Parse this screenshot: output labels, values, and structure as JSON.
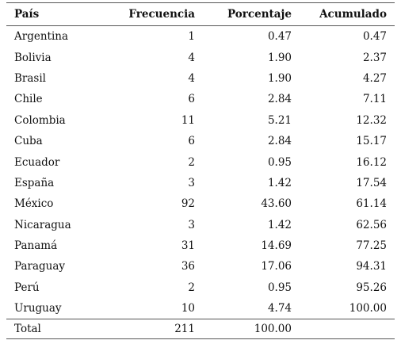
{
  "table": {
    "headers": {
      "country": "País",
      "frequency": "Frecuencia",
      "percentage": "Porcentaje",
      "cumulative": "Acumulado"
    },
    "rows": [
      {
        "country": "Argentina",
        "frequency": "1",
        "percentage": "0.47",
        "cumulative": "0.47"
      },
      {
        "country": "Bolivia",
        "frequency": "4",
        "percentage": "1.90",
        "cumulative": "2.37"
      },
      {
        "country": "Brasil",
        "frequency": "4",
        "percentage": "1.90",
        "cumulative": "4.27"
      },
      {
        "country": "Chile",
        "frequency": "6",
        "percentage": "2.84",
        "cumulative": "7.11"
      },
      {
        "country": "Colombia",
        "frequency": "11",
        "percentage": "5.21",
        "cumulative": "12.32"
      },
      {
        "country": "Cuba",
        "frequency": "6",
        "percentage": "2.84",
        "cumulative": "15.17"
      },
      {
        "country": "Ecuador",
        "frequency": "2",
        "percentage": "0.95",
        "cumulative": "16.12"
      },
      {
        "country": "España",
        "frequency": "3",
        "percentage": "1.42",
        "cumulative": "17.54"
      },
      {
        "country": "México",
        "frequency": "92",
        "percentage": "43.60",
        "cumulative": "61.14"
      },
      {
        "country": "Nicaragua",
        "frequency": "3",
        "percentage": "1.42",
        "cumulative": "62.56"
      },
      {
        "country": "Panamá",
        "frequency": "31",
        "percentage": "14.69",
        "cumulative": "77.25"
      },
      {
        "country": "Paraguay",
        "frequency": "36",
        "percentage": "17.06",
        "cumulative": "94.31"
      },
      {
        "country": "Perú",
        "frequency": "2",
        "percentage": "0.95",
        "cumulative": "95.26"
      },
      {
        "country": "Uruguay",
        "frequency": "10",
        "percentage": "4.74",
        "cumulative": "100.00"
      }
    ],
    "total": {
      "country": "Total",
      "frequency": "211",
      "percentage": "100.00",
      "cumulative": ""
    }
  }
}
